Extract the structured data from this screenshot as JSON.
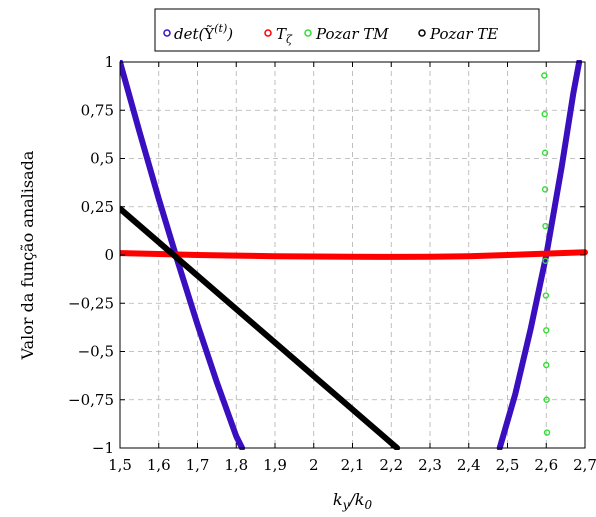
{
  "chart_data": {
    "type": "scatter",
    "xlabel": "k_y/k_0",
    "ylabel": "Valor da função analisada",
    "xlim": [
      1.5,
      2.7
    ],
    "ylim": [
      -1,
      1
    ],
    "grid": true,
    "legend_position": "top",
    "x_ticks": [
      {
        "value": 1.5,
        "label": "1,5"
      },
      {
        "value": 1.6,
        "label": "1,6"
      },
      {
        "value": 1.7,
        "label": "1,7"
      },
      {
        "value": 1.8,
        "label": "1,8"
      },
      {
        "value": 1.9,
        "label": "1,9"
      },
      {
        "value": 2.0,
        "label": "2"
      },
      {
        "value": 2.1,
        "label": "2,1"
      },
      {
        "value": 2.2,
        "label": "2,2"
      },
      {
        "value": 2.3,
        "label": "2,3"
      },
      {
        "value": 2.4,
        "label": "2,4"
      },
      {
        "value": 2.5,
        "label": "2,5"
      },
      {
        "value": 2.6,
        "label": "2,6"
      },
      {
        "value": 2.7,
        "label": "2,7"
      }
    ],
    "y_ticks": [
      {
        "value": 1,
        "label": "1"
      },
      {
        "value": 0.75,
        "label": "0,75"
      },
      {
        "value": 0.5,
        "label": "0,5"
      },
      {
        "value": 0.25,
        "label": "0,25"
      },
      {
        "value": 0,
        "label": "0"
      },
      {
        "value": -0.25,
        "label": "−0,25"
      },
      {
        "value": -0.5,
        "label": "−0,5"
      },
      {
        "value": -0.75,
        "label": "−0,75"
      },
      {
        "value": -1,
        "label": "−1"
      }
    ],
    "series": [
      {
        "name": "det(Y(t))",
        "legend_label": "det(Ỹ(t))",
        "color": "#3a0fc0",
        "segments": [
          [
            [
              1.5,
              1.0
            ],
            [
              1.55,
              0.64
            ],
            [
              1.6,
              0.29
            ],
            [
              1.65,
              -0.04
            ],
            [
              1.7,
              -0.36
            ],
            [
              1.75,
              -0.66
            ],
            [
              1.8,
              -0.94
            ],
            [
              1.815,
              -1.0
            ]
          ],
          [
            [
              2.48,
              -1.0
            ],
            [
              2.52,
              -0.72
            ],
            [
              2.56,
              -0.38
            ],
            [
              2.6,
              0.0
            ],
            [
              2.64,
              0.46
            ],
            [
              2.67,
              0.84
            ],
            [
              2.685,
              1.0
            ]
          ]
        ]
      },
      {
        "name": "T_ζ",
        "legend_label": "Tζ",
        "color": "#ff0000",
        "segments": [
          [
            [
              1.5,
              0.01
            ],
            [
              1.6,
              0.005
            ],
            [
              1.7,
              0.0
            ],
            [
              1.8,
              -0.003
            ],
            [
              1.9,
              -0.006
            ],
            [
              2.0,
              -0.008
            ],
            [
              2.1,
              -0.009
            ],
            [
              2.2,
              -0.01
            ],
            [
              2.3,
              -0.009
            ],
            [
              2.4,
              -0.006
            ],
            [
              2.5,
              0.0
            ],
            [
              2.6,
              0.007
            ],
            [
              2.7,
              0.014
            ]
          ]
        ]
      },
      {
        "name": "Pozar TM",
        "legend_label": "Pozar TM",
        "color": "#33dd33",
        "points": [
          [
            2.595,
            0.93
          ],
          [
            2.596,
            0.73
          ],
          [
            2.597,
            0.53
          ],
          [
            2.597,
            0.34
          ],
          [
            2.598,
            0.15
          ],
          [
            2.598,
            -0.03
          ],
          [
            2.599,
            -0.21
          ],
          [
            2.6,
            -0.39
          ],
          [
            2.6,
            -0.57
          ],
          [
            2.601,
            -0.75
          ],
          [
            2.602,
            -0.92
          ]
        ]
      },
      {
        "name": "Pozar TE",
        "legend_label": "Pozar TE",
        "color": "#000000",
        "segments": [
          [
            [
              1.5,
              0.24
            ],
            [
              2.215,
              -1.0
            ]
          ]
        ]
      }
    ]
  }
}
